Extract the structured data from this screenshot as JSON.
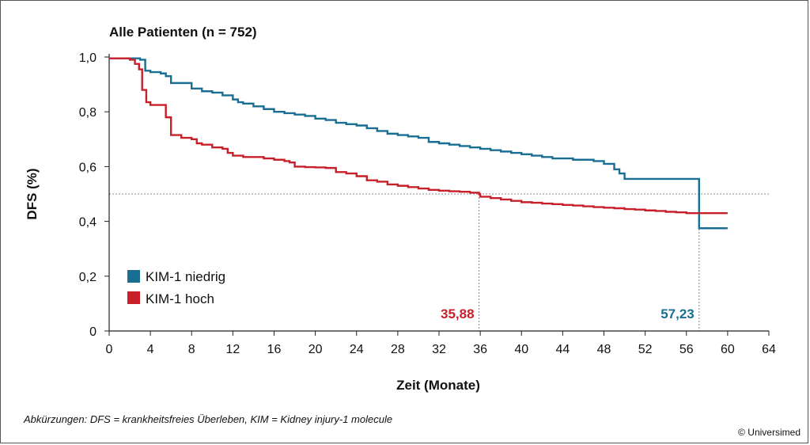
{
  "chart_data": {
    "type": "line",
    "title": "Alle Patienten (n = 752)",
    "xlabel": "Zeit (Monate)",
    "ylabel": "DFS (%)",
    "xlim": [
      0,
      64
    ],
    "ylim": [
      0,
      1.0
    ],
    "x_ticks": [
      "0",
      "4",
      "8",
      "12",
      "16",
      "20",
      "24",
      "28",
      "32",
      "36",
      "40",
      "44",
      "48",
      "52",
      "56",
      "60",
      "64"
    ],
    "y_ticks": [
      "0",
      "0,2",
      "0,4",
      "0,6",
      "0,8",
      "1,0"
    ],
    "reference_line_y": 0.5,
    "legend_position": "bottom-left",
    "series": [
      {
        "name": "KIM-1 niedrig",
        "color": "#1a6e93",
        "median_label": "57,23",
        "median_x": 57.23,
        "x": [
          0,
          2.5,
          3,
          3.5,
          4,
          5,
          5.5,
          6,
          8,
          9,
          10,
          11,
          12,
          12.5,
          13,
          14,
          15,
          16,
          17,
          18,
          19,
          20,
          21,
          22,
          23,
          24,
          25,
          26,
          27,
          28,
          29,
          30,
          31,
          32,
          33,
          34,
          35,
          36,
          37,
          38,
          39,
          40,
          41,
          42,
          43,
          44,
          45,
          46,
          47,
          48,
          49,
          49.5,
          50,
          52,
          53,
          54,
          55,
          56,
          57.23,
          57.23,
          60
        ],
        "y": [
          0.995,
          0.995,
          0.99,
          0.95,
          0.945,
          0.94,
          0.93,
          0.905,
          0.885,
          0.875,
          0.87,
          0.86,
          0.845,
          0.835,
          0.83,
          0.82,
          0.81,
          0.8,
          0.795,
          0.79,
          0.785,
          0.775,
          0.77,
          0.76,
          0.755,
          0.75,
          0.74,
          0.73,
          0.72,
          0.715,
          0.71,
          0.705,
          0.69,
          0.685,
          0.68,
          0.675,
          0.67,
          0.665,
          0.66,
          0.655,
          0.65,
          0.645,
          0.64,
          0.635,
          0.63,
          0.63,
          0.625,
          0.625,
          0.62,
          0.61,
          0.59,
          0.575,
          0.555,
          0.555,
          0.555,
          0.555,
          0.555,
          0.555,
          0.555,
          0.375,
          0.375
        ]
      },
      {
        "name": "KIM-1 hoch",
        "color": "#c8202a",
        "median_label": "35,88",
        "median_x": 35.88,
        "x": [
          0,
          2,
          2.5,
          2.9,
          3.2,
          3.6,
          4,
          5,
          5.5,
          6,
          7,
          8,
          8.5,
          9,
          10,
          11,
          11.5,
          12,
          13,
          14,
          15,
          16,
          17,
          17.5,
          18,
          19,
          20,
          21,
          22,
          23,
          24,
          25,
          26,
          27,
          28,
          29,
          30,
          31,
          32,
          33,
          34,
          35,
          35.88,
          36,
          37,
          38,
          39,
          40,
          41,
          42,
          43,
          44,
          45,
          46,
          47,
          48,
          49,
          50,
          51,
          52,
          53,
          54,
          55,
          56,
          57,
          58,
          59,
          60
        ],
        "y": [
          0.995,
          0.99,
          0.975,
          0.955,
          0.88,
          0.835,
          0.825,
          0.825,
          0.78,
          0.715,
          0.705,
          0.7,
          0.685,
          0.68,
          0.67,
          0.665,
          0.65,
          0.64,
          0.635,
          0.635,
          0.63,
          0.625,
          0.62,
          0.615,
          0.6,
          0.598,
          0.597,
          0.595,
          0.58,
          0.575,
          0.565,
          0.55,
          0.545,
          0.535,
          0.53,
          0.525,
          0.52,
          0.515,
          0.512,
          0.51,
          0.508,
          0.505,
          0.5,
          0.49,
          0.485,
          0.48,
          0.475,
          0.47,
          0.468,
          0.465,
          0.463,
          0.46,
          0.458,
          0.455,
          0.452,
          0.45,
          0.448,
          0.445,
          0.443,
          0.44,
          0.438,
          0.435,
          0.433,
          0.43,
          0.43,
          0.43,
          0.43,
          0.43
        ]
      }
    ]
  },
  "footnote": "Abkürzungen: DFS = krankheitsfreies Überleben, KIM = Kidney injury-1 molecule",
  "copyright": "© Universimed"
}
